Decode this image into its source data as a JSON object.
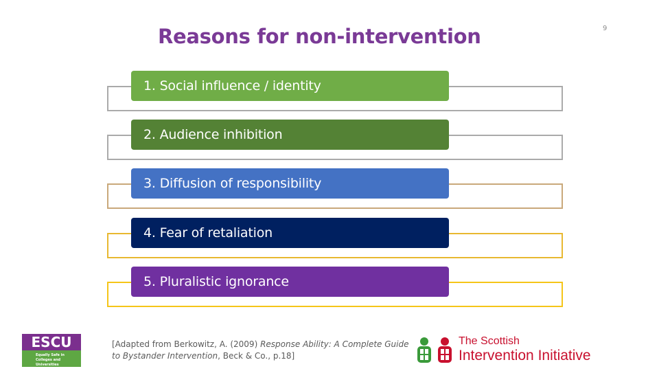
{
  "title": "Reasons for non-intervention",
  "page_number": "9",
  "items": [
    {
      "label": "1. Social influence / identity",
      "color": "#70ad47",
      "frame_color": "#aaaaaa"
    },
    {
      "label": "2. Audience inhibition",
      "color": "#548235",
      "frame_color": "#aaaaaa"
    },
    {
      "label": "3. Diffusion of responsibility",
      "color": "#4472c4",
      "frame_color": "#c9a87a"
    },
    {
      "label": "4. Fear of retaliation",
      "color": "#002060",
      "frame_color": "#e8b830"
    },
    {
      "label": "5. Pluralistic ignorance",
      "color": "#7030a0",
      "frame_color": "#f5c518"
    }
  ],
  "citation": {
    "prefix": "[Adapted from Berkowitz, A. (2009) ",
    "book": "Response Ability: A Complete Guide to Bystander Intervention",
    "suffix": ", Beck & Co., p.18]"
  },
  "logos": {
    "escu": {
      "name": "ESCU",
      "tagline_1": "Equally Safe in",
      "tagline_2": "Colleges and Universities"
    },
    "sii": {
      "line1": "The Scottish",
      "line2": "Intervention Initiative"
    }
  }
}
